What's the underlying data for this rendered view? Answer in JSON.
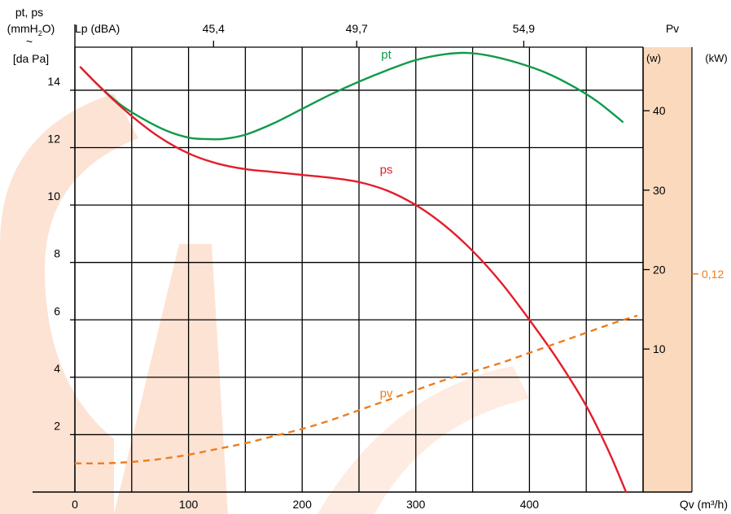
{
  "chart_data": {
    "type": "line",
    "y_axis_label": {
      "line1": "pt, ps",
      "line2_pre": "(mmH",
      "line2_sub": "2",
      "line2_post": "O)",
      "approx": "~",
      "line3": "[da Pa]"
    },
    "y_ticks": [
      2,
      4,
      6,
      8,
      10,
      12,
      14
    ],
    "y_range": [
      0,
      15.5
    ],
    "x_axis_label": "Qv (m³/h)",
    "x_ticks": [
      0,
      100,
      200,
      300,
      400
    ],
    "x_range": [
      0,
      500
    ],
    "noise_axis": {
      "label": "Lp (dBA)",
      "ticks": [
        {
          "x": 122,
          "label": "45,4"
        },
        {
          "x": 248,
          "label": "49,7"
        },
        {
          "x": 395,
          "label": "54,9"
        }
      ]
    },
    "power_axis": {
      "title": "Pv",
      "unit_w": "(w)",
      "unit_kw": "(kW)",
      "w_ticks": [
        10,
        20,
        30,
        40
      ],
      "w_range": [
        -8,
        48
      ],
      "kw_ticks": [
        {
          "value": "0,12",
          "y_equiv": 7.6
        }
      ]
    },
    "series": [
      {
        "name": "pt",
        "color": "#0f9a4c",
        "label_at": [
          274,
          15.1
        ],
        "points": [
          [
            5,
            14.8
          ],
          [
            20,
            14.2
          ],
          [
            40,
            13.5
          ],
          [
            60,
            13.0
          ],
          [
            80,
            12.6
          ],
          [
            100,
            12.35
          ],
          [
            115,
            12.3
          ],
          [
            130,
            12.3
          ],
          [
            150,
            12.45
          ],
          [
            175,
            12.85
          ],
          [
            200,
            13.35
          ],
          [
            225,
            13.85
          ],
          [
            250,
            14.3
          ],
          [
            275,
            14.7
          ],
          [
            300,
            15.05
          ],
          [
            325,
            15.25
          ],
          [
            345,
            15.3
          ],
          [
            365,
            15.2
          ],
          [
            390,
            14.95
          ],
          [
            415,
            14.6
          ],
          [
            440,
            14.1
          ],
          [
            460,
            13.6
          ],
          [
            482,
            12.9
          ]
        ]
      },
      {
        "name": "ps",
        "color": "#e41d2a",
        "label_at": [
          274,
          11.1
        ],
        "points": [
          [
            5,
            14.8
          ],
          [
            25,
            14.0
          ],
          [
            50,
            13.1
          ],
          [
            75,
            12.35
          ],
          [
            100,
            11.8
          ],
          [
            125,
            11.45
          ],
          [
            150,
            11.25
          ],
          [
            175,
            11.15
          ],
          [
            200,
            11.05
          ],
          [
            225,
            10.95
          ],
          [
            250,
            10.8
          ],
          [
            275,
            10.5
          ],
          [
            300,
            10.0
          ],
          [
            325,
            9.3
          ],
          [
            350,
            8.4
          ],
          [
            375,
            7.3
          ],
          [
            400,
            6.0
          ],
          [
            425,
            4.6
          ],
          [
            450,
            3.0
          ],
          [
            470,
            1.4
          ],
          [
            485,
            0
          ]
        ]
      },
      {
        "name": "pv",
        "color": "#ee7d1d",
        "dashed": true,
        "label_at": [
          274,
          3.3
        ],
        "points": [
          [
            0,
            1.0
          ],
          [
            25,
            1.0
          ],
          [
            50,
            1.05
          ],
          [
            75,
            1.15
          ],
          [
            100,
            1.3
          ],
          [
            125,
            1.5
          ],
          [
            150,
            1.7
          ],
          [
            175,
            1.95
          ],
          [
            200,
            2.2
          ],
          [
            225,
            2.5
          ],
          [
            250,
            2.85
          ],
          [
            275,
            3.2
          ],
          [
            300,
            3.55
          ],
          [
            325,
            3.9
          ],
          [
            350,
            4.2
          ],
          [
            375,
            4.5
          ],
          [
            400,
            4.85
          ],
          [
            425,
            5.2
          ],
          [
            450,
            5.55
          ],
          [
            475,
            5.9
          ],
          [
            495,
            6.15
          ]
        ]
      }
    ],
    "grid": true
  }
}
